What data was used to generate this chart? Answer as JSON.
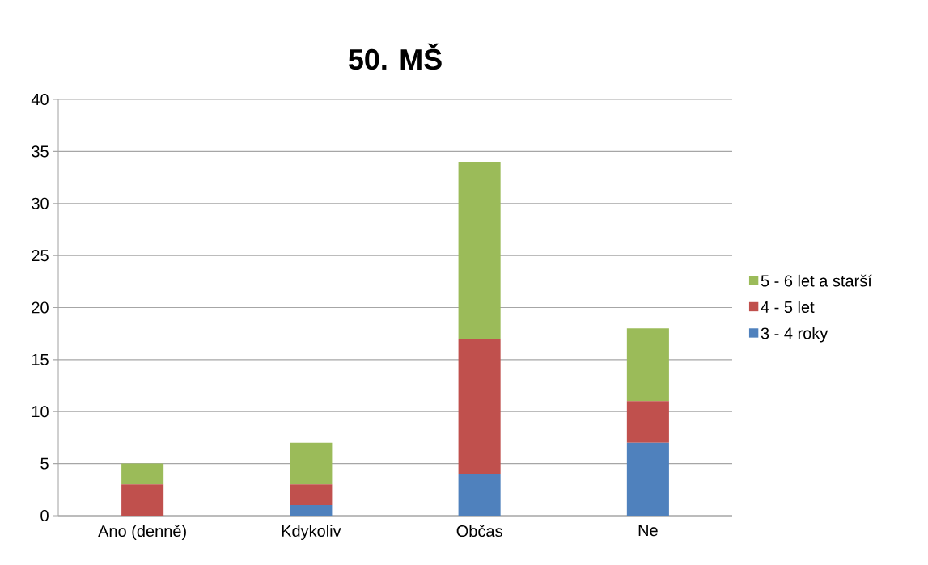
{
  "chart_data": {
    "type": "bar",
    "title": "50. MŠ",
    "stacked": true,
    "categories": [
      "Ano (denně)",
      "Kdykoliv",
      "Občas",
      "Ne"
    ],
    "series": [
      {
        "name": "3 - 4 roky",
        "color": "#4f81bd",
        "values": [
          0,
          1,
          4,
          7
        ]
      },
      {
        "name": "4 - 5 let",
        "color": "#c0504d",
        "values": [
          3,
          2,
          13,
          4
        ]
      },
      {
        "name": "5 - 6 let a starší",
        "color": "#9bbb59",
        "values": [
          2,
          4,
          17,
          7
        ]
      }
    ],
    "ylim": [
      0,
      40
    ],
    "yticks": [
      0,
      5,
      10,
      15,
      20,
      25,
      30,
      35,
      40
    ],
    "grid": "y",
    "legend": "right"
  }
}
